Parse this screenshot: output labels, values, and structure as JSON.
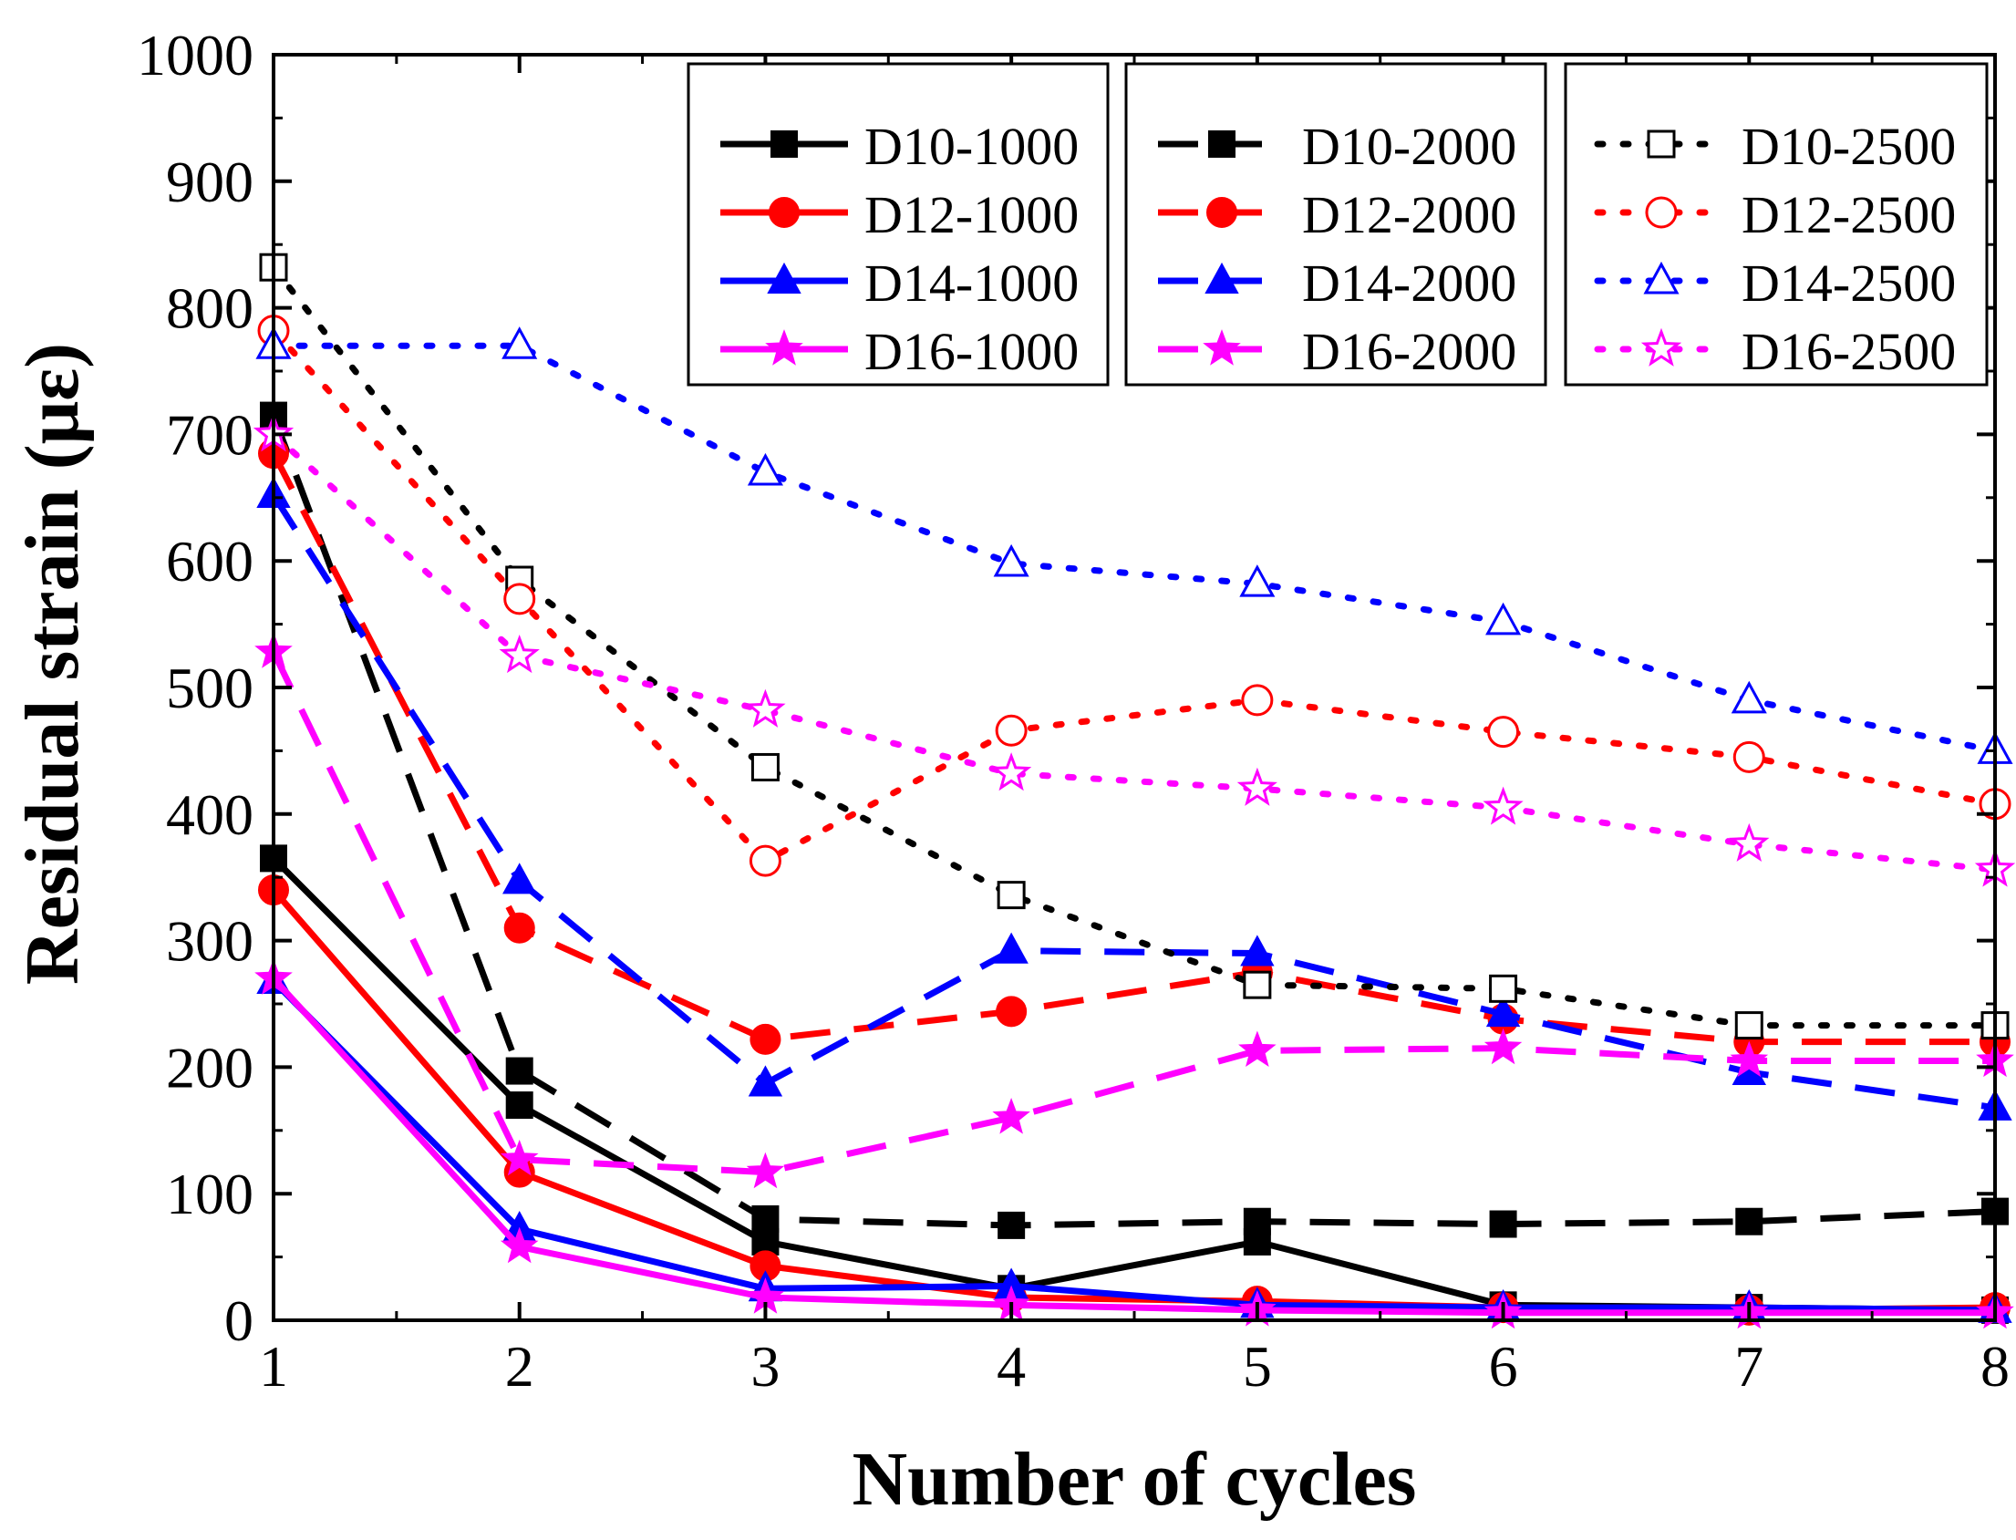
{
  "chart_data": {
    "type": "line",
    "title": "",
    "xlabel": "Number of cycles",
    "ylabel": "Residual strain (με)",
    "xlim": [
      1,
      8
    ],
    "ylim": [
      0,
      1000
    ],
    "xticks": [
      1,
      2,
      3,
      4,
      5,
      6,
      7,
      8
    ],
    "yticks": [
      0,
      100,
      200,
      300,
      400,
      500,
      600,
      700,
      800,
      900,
      1000
    ],
    "x": [
      1,
      2,
      3,
      4,
      5,
      6,
      7,
      8
    ],
    "legend_position": "top-right",
    "series": [
      {
        "name": "D10-1000",
        "color": "#000000",
        "dash": "solid",
        "marker": "square",
        "filled": true,
        "values": [
          365,
          170,
          62,
          25,
          62,
          12,
          10,
          8
        ]
      },
      {
        "name": "D12-1000",
        "color": "#ff0000",
        "dash": "solid",
        "marker": "circle",
        "filled": true,
        "values": [
          340,
          117,
          43,
          18,
          15,
          10,
          8,
          10
        ]
      },
      {
        "name": "D14-1000",
        "color": "#0000ff",
        "dash": "solid",
        "marker": "triangle",
        "filled": true,
        "values": [
          268,
          72,
          25,
          27,
          12,
          10,
          10,
          8
        ]
      },
      {
        "name": "D16-1000",
        "color": "#ff00ff",
        "dash": "solid",
        "marker": "star",
        "filled": true,
        "values": [
          270,
          58,
          18,
          12,
          8,
          6,
          6,
          6
        ]
      },
      {
        "name": "D10-2000",
        "color": "#000000",
        "dash": "dash",
        "marker": "square",
        "filled": true,
        "values": [
          715,
          197,
          80,
          75,
          78,
          76,
          78,
          86
        ]
      },
      {
        "name": "D12-2000",
        "color": "#ff0000",
        "dash": "dash",
        "marker": "circle",
        "filled": true,
        "values": [
          685,
          310,
          222,
          244,
          275,
          238,
          220,
          220
        ]
      },
      {
        "name": "D14-2000",
        "color": "#0000ff",
        "dash": "dash",
        "marker": "triangle",
        "filled": true,
        "values": [
          652,
          347,
          187,
          292,
          290,
          242,
          196,
          168
        ]
      },
      {
        "name": "D16-2000",
        "color": "#ff00ff",
        "dash": "dash",
        "marker": "star",
        "filled": true,
        "values": [
          528,
          127,
          117,
          160,
          213,
          215,
          205,
          205
        ]
      },
      {
        "name": "D10-2500",
        "color": "#000000",
        "dash": "dot",
        "marker": "square",
        "filled": false,
        "values": [
          832,
          585,
          437,
          336,
          265,
          262,
          233,
          233
        ]
      },
      {
        "name": "D12-2500",
        "color": "#ff0000",
        "dash": "dot",
        "marker": "circle",
        "filled": false,
        "values": [
          782,
          570,
          363,
          466,
          490,
          465,
          445,
          408
        ]
      },
      {
        "name": "D14-2500",
        "color": "#0000ff",
        "dash": "dot",
        "marker": "triangle",
        "filled": false,
        "values": [
          770,
          770,
          670,
          598,
          582,
          552,
          490,
          450
        ]
      },
      {
        "name": "D16-2500",
        "color": "#ff00ff",
        "dash": "dot",
        "marker": "star",
        "filled": false,
        "values": [
          700,
          525,
          482,
          432,
          420,
          405,
          376,
          356
        ]
      }
    ]
  }
}
